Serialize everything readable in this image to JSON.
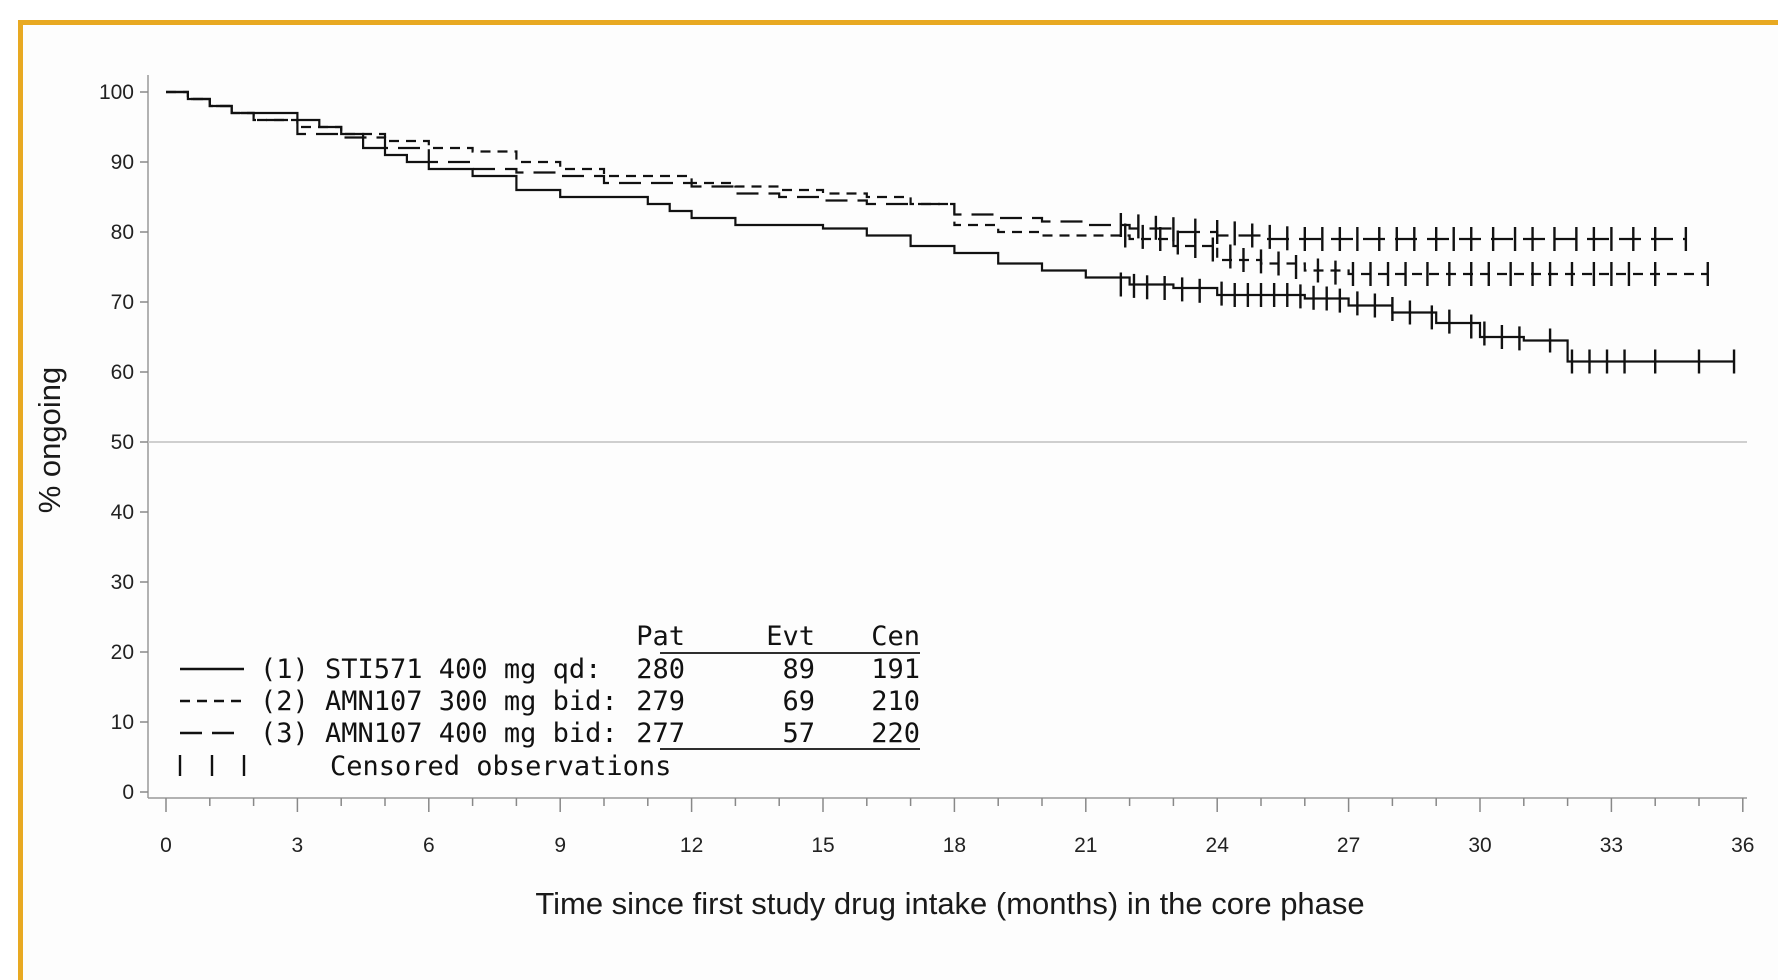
{
  "chart_data": {
    "type": "line",
    "title": "",
    "xlabel": "Time since first study drug intake (months) in the core phase",
    "ylabel": "% ongoing",
    "xlim": [
      0,
      36
    ],
    "ylim": [
      0,
      100
    ],
    "x_ticks": [
      "0",
      "3",
      "6",
      "9",
      "12",
      "15",
      "18",
      "21",
      "24",
      "27",
      "30",
      "33",
      "36"
    ],
    "y_ticks": [
      "0",
      "10",
      "20",
      "30",
      "40",
      "50",
      "60",
      "70",
      "80",
      "90",
      "100"
    ],
    "reference_line_y": 50,
    "legend": {
      "position": "bottom-left",
      "headers": [
        "Pat",
        "Evt",
        "Cen"
      ],
      "rows": [
        {
          "style": "solid",
          "label": "(1) STI571 400 mg qd:",
          "pat": "280",
          "evt": "89",
          "cen": "191"
        },
        {
          "style": "short-dash",
          "label": "(2) AMN107 300 mg bid:",
          "pat": "279",
          "evt": "69",
          "cen": "210"
        },
        {
          "style": "long-dash",
          "label": "(3) AMN107 400 mg bid:",
          "pat": "277",
          "evt": "57",
          "cen": "220"
        }
      ],
      "censored_label": "Censored observations"
    },
    "series": [
      {
        "name": "(1) STI571 400 mg qd",
        "style": "solid",
        "x": [
          0,
          0.5,
          1,
          1.5,
          2,
          3,
          3.5,
          4,
          4.5,
          5,
          5.5,
          6,
          7,
          8,
          9,
          10,
          11,
          11.5,
          12,
          13,
          14,
          15,
          15.5,
          16,
          17,
          18,
          19,
          20,
          21,
          22,
          23,
          24,
          25,
          26,
          27,
          28,
          29,
          30,
          31,
          32,
          33,
          34,
          35,
          35.8
        ],
        "y": [
          100,
          99,
          98,
          97,
          97,
          96,
          95,
          94,
          92,
          91,
          90,
          89,
          88,
          86,
          85,
          85,
          84,
          83,
          82,
          81,
          81,
          80.5,
          80.5,
          79.5,
          78,
          77,
          75.5,
          74.5,
          73.5,
          72.5,
          72,
          71,
          71,
          70.5,
          69.5,
          68.5,
          67,
          65,
          64.5,
          61.5,
          61.5,
          61.5,
          61.5,
          61.5
        ],
        "censor_x": [
          21.8,
          22.1,
          22.4,
          22.8,
          23.2,
          23.6,
          24.1,
          24.4,
          24.7,
          25.0,
          25.3,
          25.6,
          25.9,
          26.2,
          26.5,
          26.8,
          27.2,
          27.6,
          28.0,
          28.4,
          28.9,
          29.3,
          29.8,
          30.1,
          30.5,
          30.9,
          31.6,
          32.1,
          32.5,
          32.9,
          33.3,
          34.0,
          35.0,
          35.8
        ],
        "censor_y": [
          72.5,
          72.3,
          72.1,
          72,
          71.8,
          71.6,
          71.2,
          71,
          71,
          71,
          71,
          71,
          70.8,
          70.6,
          70.5,
          70.2,
          69.8,
          69.5,
          69,
          68.5,
          67.8,
          67.2,
          66.5,
          65.5,
          65,
          64.8,
          64.5,
          61.5,
          61.5,
          61.5,
          61.5,
          61.5,
          61.5,
          61.5
        ]
      },
      {
        "name": "(2) AMN107 300 mg bid",
        "style": "short-dash",
        "x": [
          0,
          0.5,
          1,
          1.5,
          2,
          3,
          4,
          5,
          6,
          7,
          8,
          9,
          10,
          11,
          12,
          13,
          14,
          15,
          16,
          17,
          18,
          19,
          20,
          21,
          22,
          23,
          24,
          25,
          26,
          27,
          28,
          29,
          30,
          31,
          32,
          33,
          34,
          35.2
        ],
        "y": [
          100,
          99,
          98,
          97,
          96,
          95,
          94,
          93,
          92,
          91.5,
          90,
          89,
          88,
          88,
          87,
          86.5,
          86,
          85.5,
          85,
          84,
          81,
          80,
          79.5,
          79.5,
          79,
          78,
          76,
          75.5,
          74.5,
          74,
          74,
          74,
          74,
          74,
          74,
          74,
          74,
          74
        ],
        "censor_x": [
          21.9,
          22.3,
          22.7,
          23.1,
          23.5,
          23.9,
          24.3,
          24.6,
          25.0,
          25.4,
          25.8,
          26.3,
          26.7,
          27.1,
          27.5,
          27.9,
          28.3,
          28.8,
          29.3,
          29.8,
          30.2,
          30.7,
          31.2,
          31.6,
          32.1,
          32.6,
          33.0,
          33.4,
          34.0,
          35.2
        ],
        "censor_y": [
          79.5,
          79.3,
          79,
          78.5,
          78,
          77.5,
          76.5,
          76,
          75.8,
          75.5,
          75,
          74.5,
          74.2,
          74,
          74,
          74,
          74,
          74,
          74,
          74,
          74,
          74,
          74,
          74,
          74,
          74,
          74,
          74,
          74,
          74
        ]
      },
      {
        "name": "(3) AMN107 400 mg bid",
        "style": "long-dash",
        "x": [
          0,
          0.5,
          1,
          1.5,
          2,
          3,
          4,
          5,
          6,
          7,
          8,
          9,
          10,
          11,
          12,
          13,
          14,
          15,
          16,
          17,
          18,
          19,
          20,
          21,
          22,
          23,
          24,
          25,
          26,
          27,
          28,
          29,
          30,
          31,
          32,
          33,
          34,
          34.7
        ],
        "y": [
          100,
          99,
          98,
          97,
          96,
          94,
          93.5,
          92,
          90,
          89,
          88.5,
          88,
          87,
          87,
          86.5,
          85.5,
          85,
          84.5,
          84,
          84,
          82.5,
          82,
          81.5,
          81,
          80.5,
          80,
          79.5,
          79,
          79,
          79,
          79,
          79,
          79,
          79,
          79,
          79,
          79,
          79
        ],
        "censor_x": [
          21.8,
          22.2,
          22.6,
          23.0,
          23.5,
          24.0,
          24.4,
          24.8,
          25.2,
          25.6,
          26.0,
          26.4,
          26.8,
          27.2,
          27.7,
          28.1,
          28.5,
          29.0,
          29.4,
          29.8,
          30.3,
          30.8,
          31.2,
          31.7,
          32.2,
          32.6,
          33.0,
          33.5,
          34.0,
          34.7
        ],
        "censor_y": [
          81,
          80.8,
          80.6,
          80.4,
          80.2,
          80,
          79.8,
          79.5,
          79.3,
          79.1,
          79,
          79,
          79,
          79,
          79,
          79,
          79,
          79,
          79,
          79,
          79,
          79,
          79,
          79,
          79,
          79,
          79,
          79,
          79,
          79
        ]
      }
    ]
  }
}
